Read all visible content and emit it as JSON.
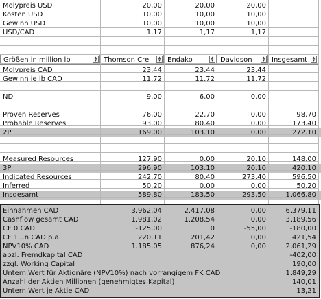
{
  "top_rows": [
    {
      "label": "Molypreis USD",
      "v": [
        "20,00",
        "20,00",
        "20,00",
        ""
      ]
    },
    {
      "label": "Kosten USD",
      "v": [
        "10,00",
        "10,00",
        "10,00",
        ""
      ]
    },
    {
      "label": "Gewinn USD",
      "v": [
        "10,00",
        "10,00",
        "10,00",
        ""
      ]
    },
    {
      "label": "USD/CAD",
      "v": [
        "1,17",
        "1,17",
        "1,17",
        ""
      ]
    }
  ],
  "headers": [
    "Größen in million lb",
    "Thomson Cre",
    "Endako",
    "Davidson",
    "Insgesamt"
  ],
  "mid_rows": [
    {
      "label": "Molypreis CAD",
      "v": [
        "23,44",
        "23,44",
        "23,44",
        ""
      ],
      "gray": false
    },
    {
      "label": "Gewinn je lb CAD",
      "v": [
        "11,72",
        "11,72",
        "11,72",
        ""
      ],
      "gray": false
    },
    {
      "label": "",
      "v": [
        "",
        "",
        "",
        ""
      ],
      "gray": false
    },
    {
      "label": "ND",
      "v": [
        "9,00",
        "6,00",
        "0,00",
        ""
      ],
      "gray": false
    },
    {
      "label": "",
      "v": [
        "",
        "",
        "",
        ""
      ],
      "gray": false
    },
    {
      "label": "Proven Reserves",
      "v": [
        "76,00",
        "22,70",
        "0,00",
        "98,70"
      ],
      "gray": false
    },
    {
      "label": "Probable Reserves",
      "v": [
        "93,00",
        "80,40",
        "0,00",
        "173,40"
      ],
      "gray": false
    },
    {
      "label": "2P",
      "v": [
        "169,00",
        "103,10",
        "0,00",
        "272,10"
      ],
      "gray": true
    },
    {
      "label": "",
      "v": [
        "",
        "",
        "",
        ""
      ],
      "gray": false
    },
    {
      "label": "",
      "v": [
        "",
        "",
        "",
        ""
      ],
      "gray": false
    },
    {
      "label": "Measured Resources",
      "v": [
        "127,90",
        "0,00",
        "20,10",
        "148,00"
      ],
      "gray": false
    },
    {
      "label": "3P",
      "v": [
        "296,90",
        "103,10",
        "20,10",
        "420,10"
      ],
      "gray": true
    },
    {
      "label": "Indicated Resources",
      "v": [
        "242,70",
        "80,40",
        "273,40",
        "596,50"
      ],
      "gray": false
    },
    {
      "label": "Inferred",
      "v": [
        "50,20",
        "0,00",
        "0,00",
        "50,20"
      ],
      "gray": false
    },
    {
      "label": "Insgesamt",
      "v": [
        "589,80",
        "183,50",
        "293,50",
        "1.066,80"
      ],
      "gray": true
    }
  ],
  "bottom_rows": [
    {
      "label": "Einnahmen CAD",
      "v": [
        "3.962,04",
        "2.417,08",
        "0,00",
        "6.379,11"
      ]
    },
    {
      "label": "Cashflow gesamt CAD",
      "v": [
        "1.981,02",
        "1.208,54",
        "0,00",
        "3.189,56"
      ]
    },
    {
      "label": "CF 0 CAD",
      "v": [
        "-125,00",
        "0",
        "-55,00",
        "-180,00"
      ]
    },
    {
      "label": "CF 1...n CAD p.a.",
      "v": [
        "220,11",
        "201,42",
        "0,00",
        "421,54"
      ]
    },
    {
      "label": "NPV10% CAD",
      "v": [
        "1.185,05",
        "876,24",
        "0,00",
        "2.061,29"
      ]
    },
    {
      "label": "abzl. Fremdkapital CAD",
      "v": [
        "",
        "",
        "",
        "-402,00"
      ]
    },
    {
      "label": "zzgl. Working Capital",
      "v": [
        "",
        "",
        "",
        "190,00"
      ]
    },
    {
      "label": "Untern.Wert für Aktionäre (NPV10%) nach vorrangigem FK CAD",
      "v": [
        "",
        "",
        "",
        "1.849,29"
      ]
    },
    {
      "label": "Anzahl der Aktien Millionen (genehmigtes Kapital)",
      "v": [
        "",
        "",
        "",
        "140,01"
      ]
    },
    {
      "label": "Untern.Wert je Aktie CAD",
      "v": [
        "",
        "",
        "",
        "13,21"
      ]
    }
  ]
}
